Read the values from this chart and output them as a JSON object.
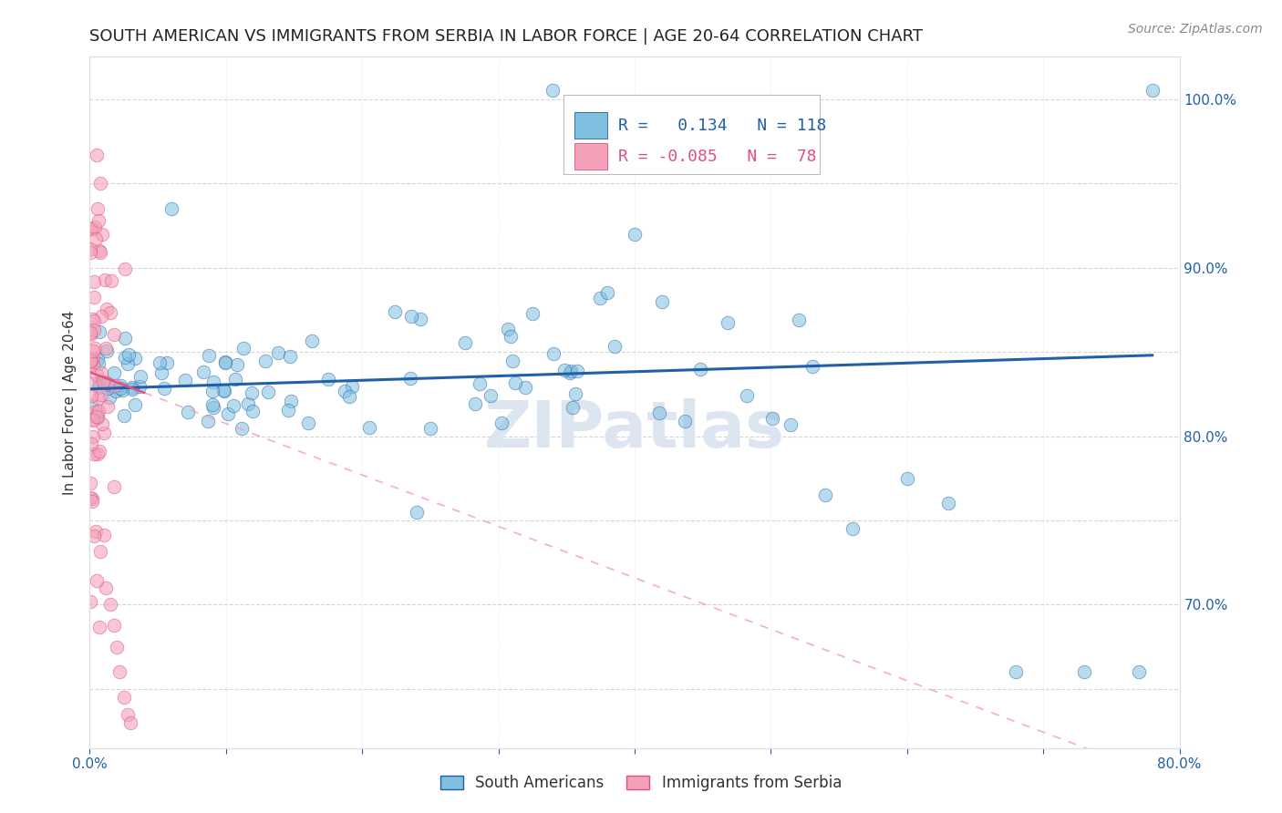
{
  "title": "SOUTH AMERICAN VS IMMIGRANTS FROM SERBIA IN LABOR FORCE | AGE 20-64 CORRELATION CHART",
  "source": "Source: ZipAtlas.com",
  "ylabel": "In Labor Force | Age 20-64",
  "xmin": 0.0,
  "xmax": 0.8,
  "ymin": 0.615,
  "ymax": 1.025,
  "blue_R": 0.134,
  "blue_N": 118,
  "pink_R": -0.085,
  "pink_N": 78,
  "blue_color": "#7fbfdf",
  "pink_color": "#f4a0b8",
  "blue_line_color": "#2060a8",
  "pink_line_color": "#e05080",
  "pink_line_dashed_color": "#f0a0c0",
  "legend_blue": "South Americans",
  "legend_pink": "Immigrants from Serbia",
  "watermark": "ZIPatlas",
  "title_fontsize": 13,
  "axis_label_fontsize": 11,
  "tick_fontsize": 11,
  "legend_fontsize": 12,
  "source_fontsize": 10,
  "title_color": "#222222",
  "tick_color": "#2060a8",
  "grid_color": "#cccccc",
  "watermark_color": "#dde5f0",
  "watermark_fontsize": 52
}
